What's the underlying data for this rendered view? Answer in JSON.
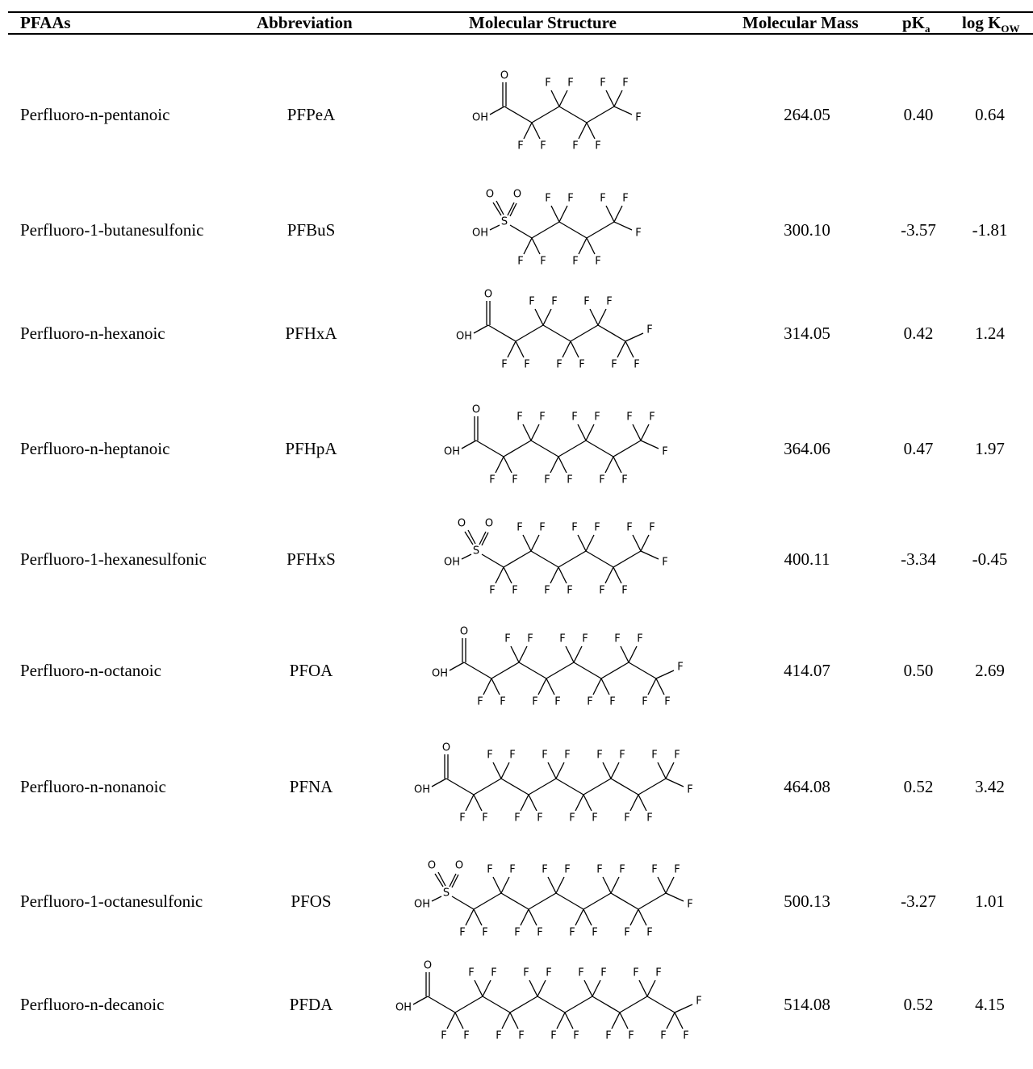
{
  "table": {
    "headers": {
      "name": "PFAAs",
      "abbr": "Abbreviation",
      "structure": "Molecular Structure",
      "mass": "Molecular Mass",
      "pka_main": "pK",
      "pka_sub": "a",
      "kow_main": "log K",
      "kow_sub": "OW"
    },
    "rows": [
      {
        "name": "Perfluoro-n-pentanoic",
        "abbr": "PFPeA",
        "head": "COOH",
        "cf2": 3,
        "mass": "264.05",
        "pka": "0.40",
        "kow": "0.64"
      },
      {
        "name": "Perfluoro-1-butanesulfonic",
        "abbr": "PFBuS",
        "head": "SO3H",
        "cf2": 3,
        "mass": "300.10",
        "pka": "-3.57",
        "kow": "-1.81"
      },
      {
        "name": "Perfluoro-n-hexanoic",
        "abbr": "PFHxA",
        "head": "COOH",
        "cf2": 4,
        "mass": "314.05",
        "pka": "0.42",
        "kow": "1.24"
      },
      {
        "name": "Perfluoro-n-heptanoic",
        "abbr": "PFHpA",
        "head": "COOH",
        "cf2": 5,
        "mass": "364.06",
        "pka": "0.47",
        "kow": "1.97"
      },
      {
        "name": "Perfluoro-1-hexanesulfonic",
        "abbr": "PFHxS",
        "head": "SO3H",
        "cf2": 5,
        "mass": "400.11",
        "pka": "-3.34",
        "kow": "-0.45"
      },
      {
        "name": "Perfluoro-n-octanoic",
        "abbr": "PFOA",
        "head": "COOH",
        "cf2": 6,
        "mass": "414.07",
        "pka": "0.50",
        "kow": "2.69"
      },
      {
        "name": "Perfluoro-n-nonanoic",
        "abbr": "PFNA",
        "head": "COOH",
        "cf2": 7,
        "mass": "464.08",
        "pka": "0.52",
        "kow": "3.42"
      },
      {
        "name": "Perfluoro-1-octanesulfonic",
        "abbr": "PFOS",
        "head": "SO3H",
        "cf2": 7,
        "mass": "500.13",
        "pka": "-3.27",
        "kow": "1.01"
      },
      {
        "name": "Perfluoro-n-decanoic",
        "abbr": "PFDA",
        "head": "COOH",
        "cf2": 8,
        "mass": "514.08",
        "pka": "0.52",
        "kow": "4.15"
      }
    ],
    "atom_labels": {
      "oxygen": "O",
      "hydroxyl": "OH",
      "sulfur": "S",
      "fluorine": "F"
    }
  }
}
